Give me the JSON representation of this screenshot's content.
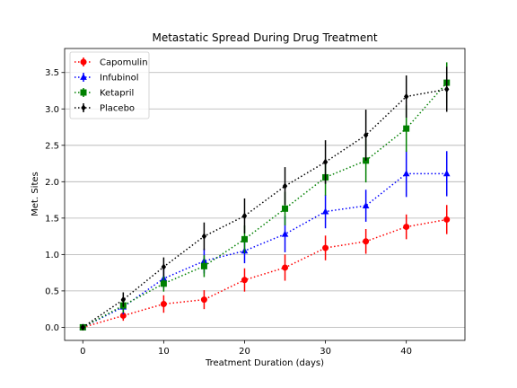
{
  "chart_data": {
    "type": "line",
    "title": "Metastatic Spread During Drug Treatment",
    "xlabel": "Treatment Duration (days)",
    "ylabel": "Met. Sites",
    "xlim": [
      -2.25,
      47.25
    ],
    "ylim": [
      -0.18,
      3.83
    ],
    "xticks": [
      0,
      10,
      20,
      30,
      40
    ],
    "yticks": [
      0.0,
      0.5,
      1.0,
      1.5,
      2.0,
      2.5,
      3.0,
      3.5
    ],
    "xtick_labels": [
      "0",
      "10",
      "20",
      "30",
      "40"
    ],
    "ytick_labels": [
      "0.0",
      "0.5",
      "1.0",
      "1.5",
      "2.0",
      "2.5",
      "3.0",
      "3.5"
    ],
    "grid": "horizontal",
    "legend_position": "top-left",
    "x": [
      0,
      5,
      10,
      15,
      20,
      25,
      30,
      35,
      40,
      45
    ],
    "series": [
      {
        "name": "Capomulin",
        "color": "#ff0000",
        "marker": "circle",
        "values": [
          0.0,
          0.16,
          0.32,
          0.38,
          0.65,
          0.82,
          1.09,
          1.18,
          1.38,
          1.48
        ],
        "errors": [
          0.0,
          0.07,
          0.12,
          0.13,
          0.16,
          0.18,
          0.17,
          0.17,
          0.17,
          0.2
        ]
      },
      {
        "name": "Infubinol",
        "color": "#0000ff",
        "marker": "triangle",
        "values": [
          0.0,
          0.28,
          0.67,
          0.91,
          1.05,
          1.28,
          1.59,
          1.67,
          2.11,
          2.11
        ],
        "errors": [
          0.0,
          0.1,
          0.13,
          0.17,
          0.17,
          0.25,
          0.23,
          0.22,
          0.32,
          0.31
        ]
      },
      {
        "name": "Ketapril",
        "color": "#008000",
        "marker": "square",
        "values": [
          0.0,
          0.3,
          0.6,
          0.84,
          1.21,
          1.63,
          2.06,
          2.29,
          2.73,
          3.36
        ],
        "errors": [
          0.0,
          0.1,
          0.11,
          0.15,
          0.19,
          0.23,
          0.25,
          0.3,
          0.32,
          0.28
        ]
      },
      {
        "name": "Placebo",
        "color": "#000000",
        "marker": "diamond",
        "values": [
          0.0,
          0.38,
          0.83,
          1.25,
          1.53,
          1.94,
          2.27,
          2.64,
          3.17,
          3.27
        ],
        "errors": [
          0.0,
          0.1,
          0.13,
          0.19,
          0.24,
          0.26,
          0.3,
          0.35,
          0.29,
          0.31
        ]
      }
    ]
  }
}
